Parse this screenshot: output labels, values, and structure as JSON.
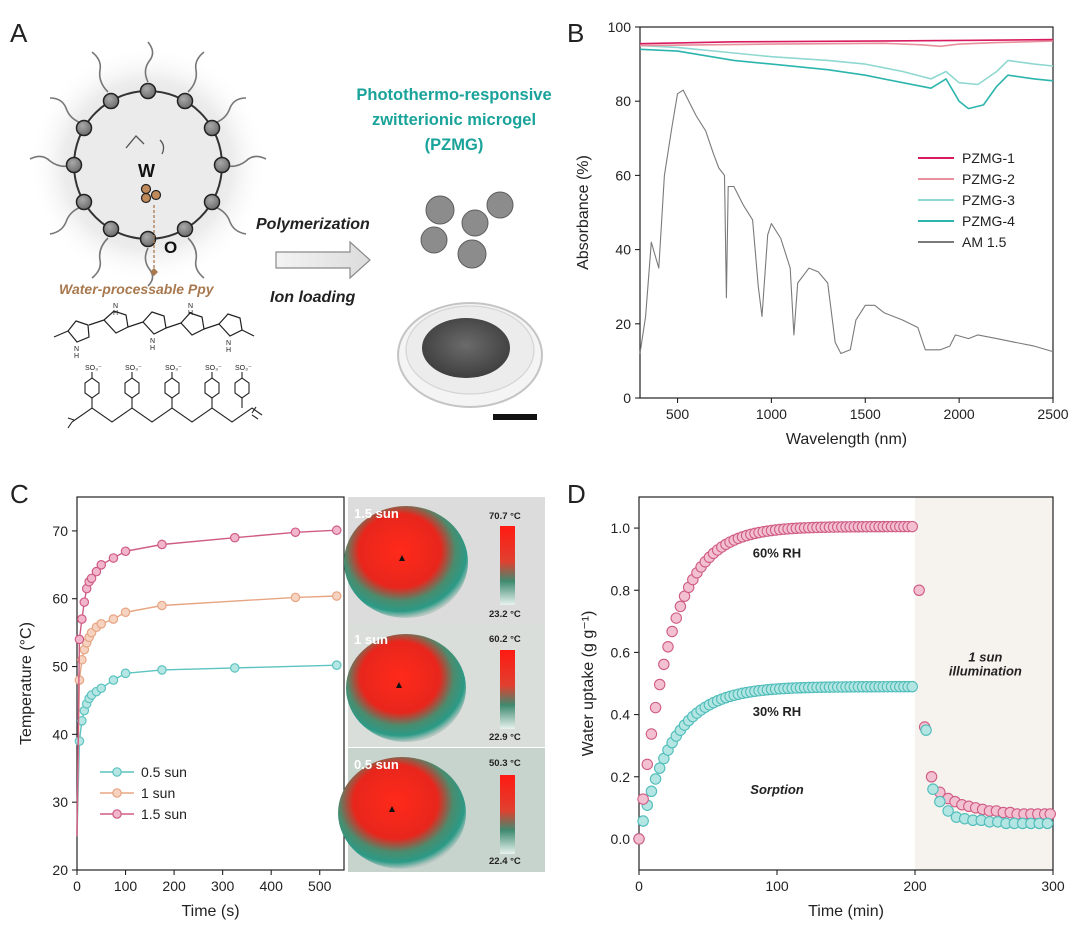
{
  "panels": {
    "A": {
      "letter": "A",
      "title_lines": [
        "Photothermo-responsive",
        "zwitterionic microgel",
        "(PZMG)"
      ],
      "label_w": "W",
      "label_o": "O",
      "ppy_label": "Water-processable Ppy",
      "arrow_top": "Polymerization",
      "arrow_bottom": "Ion loading",
      "accent": "#1aa39a",
      "ppy_color": "#a8794f"
    },
    "B": {
      "letter": "B"
    },
    "C": {
      "letter": "C"
    },
    "D": {
      "letter": "D"
    }
  },
  "thermal": [
    {
      "label": "1.5 sun",
      "max": "70.7 °C",
      "min": "23.2 °C"
    },
    {
      "label": "1 sun",
      "max": "60.2 °C",
      "min": "22.9 °C"
    },
    {
      "label": "0.5 sun",
      "max": "50.3 °C",
      "min": "22.4 °C"
    }
  ],
  "chart_data": [
    {
      "panel": "B",
      "type": "line",
      "xlabel": "Wavelength (nm)",
      "ylabel": "Absorbance (%)",
      "xlim": [
        300,
        2500
      ],
      "ylim": [
        0,
        100
      ],
      "xticks": [
        500,
        1000,
        1500,
        2000,
        2500
      ],
      "yticks": [
        0,
        20,
        40,
        60,
        80,
        100
      ],
      "legend_position": "center-right",
      "series": [
        {
          "name": "PZMG-1",
          "color": "#d81b60",
          "points": [
            [
              300,
              95.5
            ],
            [
              800,
              96
            ],
            [
              1500,
              96.2
            ],
            [
              2000,
              96.4
            ],
            [
              2500,
              96.6
            ]
          ]
        },
        {
          "name": "PZMG-2",
          "color": "#e8909c",
          "points": [
            [
              300,
              95
            ],
            [
              1000,
              95.4
            ],
            [
              1600,
              95.6
            ],
            [
              1800,
              95.2
            ],
            [
              1900,
              94.8
            ],
            [
              2000,
              95.4
            ],
            [
              2200,
              95.8
            ],
            [
              2500,
              96.2
            ]
          ]
        },
        {
          "name": "PZMG-3",
          "color": "#8fd8d2",
          "points": [
            [
              300,
              95
            ],
            [
              500,
              94.5
            ],
            [
              800,
              93
            ],
            [
              1000,
              92
            ],
            [
              1300,
              91
            ],
            [
              1500,
              90
            ],
            [
              1700,
              88
            ],
            [
              1850,
              86
            ],
            [
              1930,
              88
            ],
            [
              2000,
              85
            ],
            [
              2100,
              84.5
            ],
            [
              2200,
              88
            ],
            [
              2260,
              91
            ],
            [
              2400,
              90
            ],
            [
              2500,
              89.5
            ]
          ]
        },
        {
          "name": "PZMG-4",
          "color": "#2cb5ad",
          "points": [
            [
              300,
              94
            ],
            [
              500,
              93.5
            ],
            [
              800,
              91
            ],
            [
              1000,
              90
            ],
            [
              1300,
              88.5
            ],
            [
              1500,
              87
            ],
            [
              1700,
              85
            ],
            [
              1850,
              83.5
            ],
            [
              1930,
              86
            ],
            [
              2000,
              80
            ],
            [
              2050,
              78
            ],
            [
              2130,
              79
            ],
            [
              2200,
              84
            ],
            [
              2260,
              87
            ],
            [
              2400,
              86
            ],
            [
              2500,
              85.5
            ]
          ]
        },
        {
          "name": "AM 1.5",
          "color": "#7a7a7a",
          "points": [
            [
              300,
              12
            ],
            [
              330,
              22
            ],
            [
              360,
              42
            ],
            [
              400,
              35
            ],
            [
              430,
              60
            ],
            [
              470,
              73
            ],
            [
              500,
              82
            ],
            [
              530,
              83
            ],
            [
              560,
              80
            ],
            [
              600,
              76
            ],
            [
              650,
              72
            ],
            [
              690,
              66
            ],
            [
              720,
              62
            ],
            [
              750,
              60
            ],
            [
              760,
              27
            ],
            [
              770,
              57
            ],
            [
              800,
              57
            ],
            [
              850,
              52
            ],
            [
              900,
              48
            ],
            [
              930,
              30
            ],
            [
              950,
              22
            ],
            [
              980,
              44
            ],
            [
              1000,
              47
            ],
            [
              1050,
              43
            ],
            [
              1100,
              35
            ],
            [
              1120,
              17
            ],
            [
              1140,
              31
            ],
            [
              1200,
              35
            ],
            [
              1250,
              34
            ],
            [
              1300,
              31
            ],
            [
              1340,
              15
            ],
            [
              1370,
              12
            ],
            [
              1420,
              13
            ],
            [
              1450,
              21
            ],
            [
              1500,
              25
            ],
            [
              1550,
              25
            ],
            [
              1600,
              23
            ],
            [
              1700,
              21
            ],
            [
              1780,
              19
            ],
            [
              1820,
              13
            ],
            [
              1900,
              13
            ],
            [
              1950,
              14
            ],
            [
              1980,
              17
            ],
            [
              2050,
              16
            ],
            [
              2100,
              17
            ],
            [
              2200,
              16
            ],
            [
              2300,
              15
            ],
            [
              2400,
              14
            ],
            [
              2500,
              12.5
            ]
          ]
        }
      ]
    },
    {
      "panel": "C",
      "type": "line",
      "xlabel": "Time (s)",
      "ylabel": "Temperature (°C)",
      "xlim": [
        0,
        550
      ],
      "ylim": [
        20,
        75
      ],
      "xticks": [
        0,
        100,
        200,
        300,
        400,
        500
      ],
      "yticks": [
        20,
        30,
        40,
        50,
        60,
        70
      ],
      "legend_position": "bottom-left",
      "series": [
        {
          "name": "0.5 sun",
          "color": "#5cc3c0",
          "fill": "#b6e6e3",
          "x": [
            0,
            5,
            10,
            15,
            20,
            25,
            30,
            40,
            50,
            75,
            100,
            175,
            325,
            535
          ],
          "y": [
            25,
            39,
            42,
            43.5,
            44.5,
            45.3,
            45.8,
            46.3,
            46.8,
            48,
            49,
            49.5,
            49.8,
            50.2
          ]
        },
        {
          "name": "1 sun",
          "color": "#e7a583",
          "fill": "#f6d3c0",
          "x": [
            0,
            5,
            10,
            15,
            20,
            25,
            30,
            40,
            50,
            75,
            100,
            175,
            450,
            535
          ],
          "y": [
            25,
            48,
            51,
            52.5,
            53.5,
            54.3,
            55,
            55.8,
            56.3,
            57,
            58,
            59,
            60.2,
            60.4
          ]
        },
        {
          "name": "1.5 sun",
          "color": "#cf5c85",
          "fill": "#f1b6cb",
          "x": [
            0,
            5,
            10,
            15,
            20,
            25,
            30,
            40,
            50,
            75,
            100,
            175,
            325,
            450,
            535
          ],
          "y": [
            25,
            54,
            57,
            59.5,
            61.5,
            62.5,
            63,
            64,
            65,
            66,
            67,
            68,
            69,
            69.8,
            70.1
          ]
        }
      ]
    },
    {
      "panel": "D",
      "type": "scatter",
      "xlabel": "Time (min)",
      "ylabel": "Water uptake (g g⁻¹)",
      "xlim": [
        0,
        300
      ],
      "ylim": [
        -0.1,
        1.1
      ],
      "xticks": [
        0,
        100,
        200,
        300
      ],
      "yticks": [
        0.0,
        0.2,
        0.4,
        0.6,
        0.8,
        1.0
      ],
      "annotations": [
        "60% RH",
        "30% RH",
        "Sorption",
        "1 sun",
        "illumination"
      ],
      "shaded_region": [
        200,
        300
      ],
      "series": [
        {
          "name": "60% RH",
          "color": "#cf5c85",
          "fill": "#f3c0d1",
          "sorption": {
            "t_end": 200,
            "step": 3,
            "amp": 1.005,
            "tau": 22
          },
          "desorption": {
            "t": [
              203,
              207,
              212,
              218,
              224,
              229,
              234,
              239,
              244,
              249,
              254,
              259,
              264,
              269,
              274,
              279,
              284,
              289,
              294,
              298
            ],
            "v": [
              0.8,
              0.36,
              0.2,
              0.15,
              0.13,
              0.12,
              0.11,
              0.105,
              0.1,
              0.095,
              0.09,
              0.09,
              0.085,
              0.085,
              0.08,
              0.08,
              0.08,
              0.08,
              0.08,
              0.08
            ]
          }
        },
        {
          "name": "30% RH",
          "color": "#4fbdba",
          "fill": "#b3e5e2",
          "sorption": {
            "t_end": 200,
            "step": 3,
            "amp": 0.49,
            "tau": 24
          },
          "desorption": {
            "t": [
              208,
              213,
              218,
              224,
              230,
              236,
              242,
              248,
              254,
              260,
              266,
              272,
              278,
              284,
              290,
              296
            ],
            "v": [
              0.35,
              0.16,
              0.12,
              0.09,
              0.07,
              0.065,
              0.06,
              0.06,
              0.055,
              0.055,
              0.05,
              0.05,
              0.05,
              0.05,
              0.05,
              0.05
            ]
          }
        }
      ]
    }
  ]
}
